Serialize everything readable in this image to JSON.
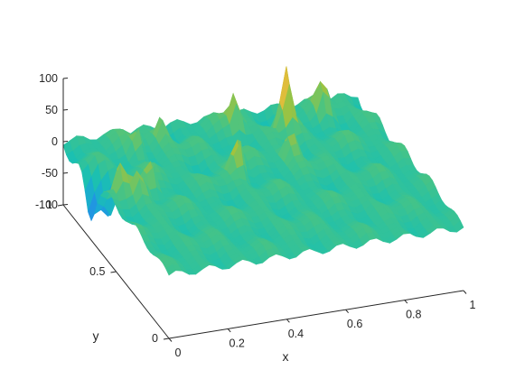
{
  "chart_data": {
    "type": "surface",
    "title": "",
    "xlabel": "x",
    "ylabel": "y",
    "zlabel": "",
    "xlim": [
      0,
      1
    ],
    "ylim": [
      0,
      1
    ],
    "zlim": [
      -100,
      100
    ],
    "x_ticks": [
      "0",
      "0.2",
      "0.4",
      "0.6",
      "0.8",
      "1"
    ],
    "y_ticks": [
      "0",
      "0.5",
      "1"
    ],
    "z_ticks": [
      "100",
      "50",
      "0",
      "-50",
      "-100"
    ],
    "x_tick_values": [
      0,
      0.2,
      0.4,
      0.6,
      0.8,
      1
    ],
    "y_tick_values": [
      0,
      0.5,
      1
    ],
    "z_tick_values": [
      100,
      50,
      0,
      -50,
      -100
    ],
    "colormap": [
      "#3e26a8",
      "#2f71f7",
      "#1aa8d6",
      "#1bc0b1",
      "#4dc47f",
      "#a9c338",
      "#f8ba3d",
      "#f9fb15"
    ],
    "surface_base_color": "#1bbfb1",
    "grid": false,
    "legend": "none",
    "peaks": [
      {
        "x": 0.05,
        "y": 0.6,
        "z": 55
      },
      {
        "x": 0.1,
        "y": 0.55,
        "z": 40
      },
      {
        "x": 0.15,
        "y": 0.6,
        "z": 60
      },
      {
        "x": 0.2,
        "y": 0.85,
        "z": 45
      },
      {
        "x": 0.3,
        "y": 0.9,
        "z": 40
      },
      {
        "x": 0.45,
        "y": 0.6,
        "z": 65
      },
      {
        "x": 0.55,
        "y": 0.9,
        "z": 55
      },
      {
        "x": 0.7,
        "y": 0.85,
        "z": 95
      },
      {
        "x": 0.65,
        "y": 0.65,
        "z": 50
      },
      {
        "x": 0.85,
        "y": 0.9,
        "z": 45
      }
    ],
    "troughs": [
      {
        "x": 0.0,
        "y": 0.75,
        "z": -65
      },
      {
        "x": 0.05,
        "y": 0.7,
        "z": -50
      }
    ]
  }
}
